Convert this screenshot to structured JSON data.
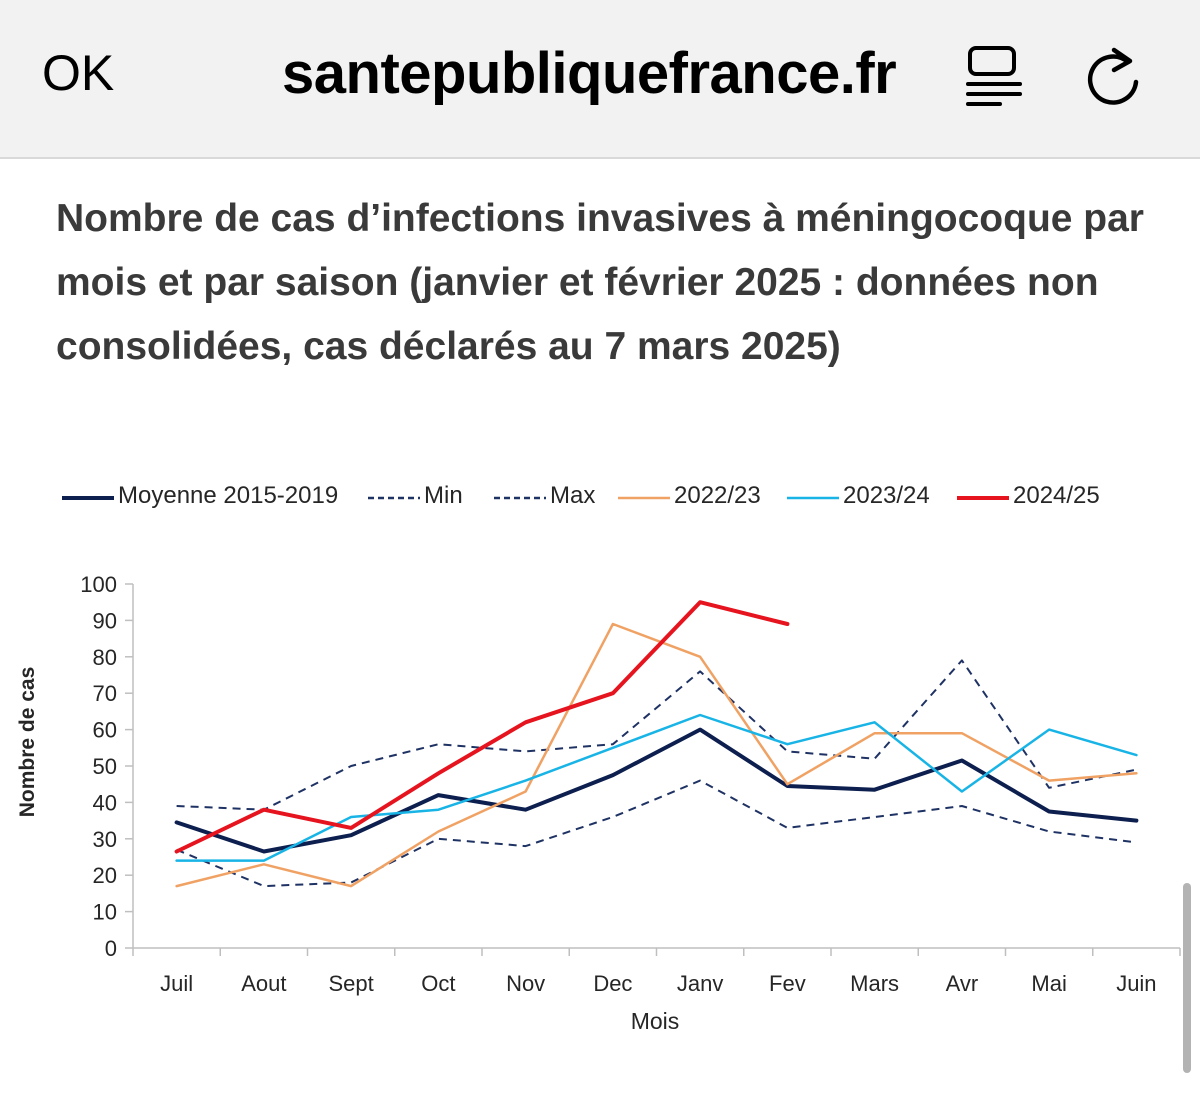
{
  "browser": {
    "ok_label": "OK",
    "domain": "santepubliquefrance.fr",
    "reader_icon": "reader-view-icon",
    "reload_icon": "reload-icon"
  },
  "article": {
    "title": "Nombre de cas d’infections invasives à méningocoque par mois et par saison (janvier et février 2025 : données non consolidées, cas déclarés au 7 mars 2025)"
  },
  "chart_data": {
    "type": "line",
    "categories": [
      "Juil",
      "Aout",
      "Sept",
      "Oct",
      "Nov",
      "Dec",
      "Janv",
      "Fev",
      "Mars",
      "Avr",
      "Mai",
      "Juin"
    ],
    "xlabel": "Mois",
    "ylabel": "Nombre de cas",
    "ylim": [
      0,
      100
    ],
    "yticks": [
      0,
      10,
      20,
      30,
      40,
      50,
      60,
      70,
      80,
      90,
      100
    ],
    "grid": false,
    "legend_position": "top",
    "series": [
      {
        "name": "Moyenne 2015-2019",
        "color": "#0d1f4f",
        "style": "solid",
        "width": 4,
        "values": [
          34.5,
          26.5,
          31,
          42,
          38,
          47.5,
          60,
          44.5,
          43.5,
          51.5,
          37.5,
          35
        ]
      },
      {
        "name": "Min",
        "color": "#1f3264",
        "style": "dashed",
        "width": 2,
        "values": [
          27,
          17,
          18,
          30,
          28,
          36,
          46,
          33,
          36,
          39,
          32,
          29
        ]
      },
      {
        "name": "Max",
        "color": "#1f3264",
        "style": "dashed",
        "width": 2,
        "values": [
          39,
          38,
          50,
          56,
          54,
          56,
          76,
          54,
          52,
          79,
          44,
          49
        ]
      },
      {
        "name": "2022/23",
        "color": "#f0a264",
        "style": "solid",
        "width": 2.5,
        "values": [
          17,
          23,
          17,
          32,
          43,
          89,
          80,
          45,
          59,
          59,
          46,
          48
        ]
      },
      {
        "name": "2023/24",
        "color": "#19b4e6",
        "style": "solid",
        "width": 2.5,
        "values": [
          24,
          24,
          36,
          38,
          46,
          55,
          64,
          56,
          62,
          43,
          60,
          53
        ]
      },
      {
        "name": "2024/25",
        "color": "#e5141e",
        "style": "solid",
        "width": 4,
        "values": [
          26.5,
          38,
          33,
          48,
          62,
          70,
          95,
          89,
          null,
          null,
          null,
          null
        ]
      }
    ]
  }
}
